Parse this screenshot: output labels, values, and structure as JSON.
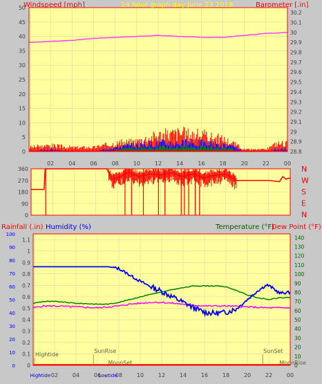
{
  "colors": {
    "background": "#c8c8c8",
    "plot_bg": "#ffffa0",
    "axis": "#ff0000",
    "wind": "#ff0000",
    "gust_blue": "#0000ff",
    "green": "#008000",
    "barometer": "#ff40ff",
    "direction": "#ff0000",
    "humidity": "#0000ff",
    "temperature": "#008000",
    "dewpoint": "#ff00ff",
    "rain": "#ff0000",
    "title": "#ffff00",
    "blue_label": "#0000ff",
    "green_label": "#006000",
    "dark_label": "#404040"
  },
  "chart_data": [
    {
      "type": "line",
      "name": "wind-barometer",
      "title": "24 hour graph day   June 23 2018",
      "left_label": "Windspeed [mph]",
      "right_label": "Barometer [.in]",
      "x_ticks": [
        "02",
        "04",
        "06",
        "08",
        "10",
        "12",
        "14",
        "16",
        "18",
        "20",
        "22",
        "00"
      ],
      "y_left_ticks": [
        0,
        5,
        10,
        15,
        20,
        25,
        30,
        35,
        40,
        45,
        50
      ],
      "y_left_range": [
        0,
        50
      ],
      "y_right_ticks": [
        "28.8",
        "28.9",
        "29",
        "29.1",
        "29.2",
        "29.3",
        "29.4",
        "29.5",
        "29.6",
        "29.7",
        "29.8",
        "29.9",
        "30",
        "30.1",
        "30.2"
      ],
      "y_right_range": [
        28.8,
        30.25
      ],
      "barometer": {
        "hours": [
          0,
          2,
          4,
          6,
          8,
          10,
          12,
          14,
          16,
          18,
          20,
          22,
          24
        ],
        "values": [
          29.9,
          29.91,
          29.92,
          29.94,
          29.95,
          29.96,
          29.97,
          29.96,
          29.95,
          29.95,
          29.97,
          29.99,
          30.0
        ]
      },
      "wind_envelope": {
        "hours": [
          0,
          2,
          4,
          6,
          7,
          8,
          10,
          12,
          14,
          16,
          18,
          19,
          20,
          22,
          23,
          24
        ],
        "gust": [
          2,
          3,
          2,
          2,
          3,
          4,
          5,
          8,
          9,
          8,
          6,
          4,
          1,
          1,
          4,
          4
        ],
        "avg": [
          0,
          1,
          0,
          0,
          1,
          2,
          3,
          4,
          4,
          4,
          3,
          2,
          0,
          0,
          1,
          1
        ]
      }
    },
    {
      "type": "line",
      "name": "wind-direction",
      "y_ticks": [
        0,
        90,
        180,
        270,
        360
      ],
      "y_range": [
        0,
        360
      ],
      "compass_labels": [
        "N",
        "W",
        "S",
        "E",
        "N"
      ],
      "direction": {
        "hours": [
          0,
          1.2,
          1.3,
          1.45,
          1.5,
          7,
          7.5,
          8,
          9,
          10,
          11,
          12,
          13,
          14,
          15,
          16,
          17,
          18,
          19,
          20,
          21,
          22,
          23,
          23.3,
          23.6,
          24
        ],
        "values": [
          200,
          200,
          360,
          360,
          360,
          360,
          280,
          290,
          330,
          300,
          320,
          310,
          330,
          300,
          320,
          290,
          310,
          320,
          270,
          270,
          270,
          270,
          260,
          300,
          280,
          290
        ]
      }
    },
    {
      "type": "line",
      "name": "humidity-temperature-rain",
      "left_label_1": "Rainfall (.in)",
      "left_label_2": "Humidity (%)",
      "right_label_1": "Temperature (°F)",
      "right_label_2": "Dew Point (°F)",
      "y_outer_ticks": [
        0,
        10,
        20,
        30,
        40,
        50,
        60,
        70,
        80,
        90,
        100
      ],
      "y_rain_ticks": [
        "0",
        "0.1",
        "0.2",
        "0.3",
        "0.4",
        "0.5",
        "0.6",
        "0.7",
        "0.8",
        "0.9",
        "1",
        "1.1"
      ],
      "y_rain_range": [
        0,
        1.15
      ],
      "y_temp_ticks": [
        0,
        10,
        20,
        30,
        40,
        50,
        60,
        70,
        80,
        90,
        100,
        110,
        120,
        130,
        140
      ],
      "y_temp_range": [
        0,
        144
      ],
      "x_ticks": [
        "02",
        "04",
        "06",
        "08",
        "10",
        "12",
        "14",
        "16",
        "18",
        "20",
        "22",
        "00"
      ],
      "annotations": [
        {
          "text": "Hightide",
          "hour": 0.0
        },
        {
          "text": "SunRise",
          "hour": 5.5
        },
        {
          "text": "MoonSet",
          "hour": 6.8
        },
        {
          "text": "SunSet",
          "hour": 21.3
        },
        {
          "text": "MoonRise",
          "hour": 22.8
        }
      ],
      "bottom_labels": [
        {
          "text": "Hightide",
          "hour": 0.8
        },
        {
          "text": "Lowtide",
          "hour": 7.1
        }
      ],
      "humidity": {
        "hours": [
          0,
          2,
          4,
          6,
          7,
          8,
          9,
          10,
          11,
          12,
          13,
          14,
          15,
          16,
          17,
          18,
          19,
          20,
          21,
          21.8,
          22.2,
          23,
          24
        ],
        "values": [
          108,
          108,
          108,
          108,
          108,
          106,
          99,
          92,
          86,
          81,
          75,
          69,
          63,
          58,
          57,
          58,
          62,
          72,
          82,
          88,
          86,
          79,
          80
        ]
      },
      "temperature": {
        "hours": [
          0,
          1,
          2,
          4,
          6,
          7,
          8,
          9,
          10,
          11,
          12,
          13,
          14,
          15,
          16,
          17,
          18,
          19,
          20,
          21,
          22,
          23,
          24
        ],
        "values": [
          68,
          70,
          70,
          68,
          67,
          67,
          69,
          72,
          75,
          78,
          80,
          83,
          85,
          87,
          87,
          87,
          86,
          82,
          77,
          74,
          72,
          74,
          74
        ]
      },
      "dewpoint": {
        "hours": [
          0,
          1,
          2,
          4,
          6,
          8,
          9,
          10,
          11,
          12,
          14,
          16,
          18,
          20,
          22,
          24
        ],
        "values": [
          63,
          65,
          65,
          64,
          63,
          65,
          67,
          68,
          69,
          69,
          67,
          65,
          65,
          64,
          63,
          63
        ]
      },
      "rain": {
        "hours": [
          0,
          24
        ],
        "values": [
          0,
          0
        ]
      }
    }
  ]
}
